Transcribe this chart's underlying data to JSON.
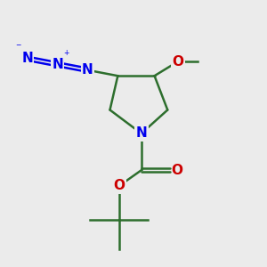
{
  "background_color": "#ebebeb",
  "bond_color": "#2d6e2d",
  "N_color": "#0000ee",
  "O_color": "#cc0000",
  "figsize": [
    3.0,
    3.0
  ],
  "dpi": 100,
  "xlim": [
    0,
    10
  ],
  "ylim": [
    0,
    10
  ]
}
